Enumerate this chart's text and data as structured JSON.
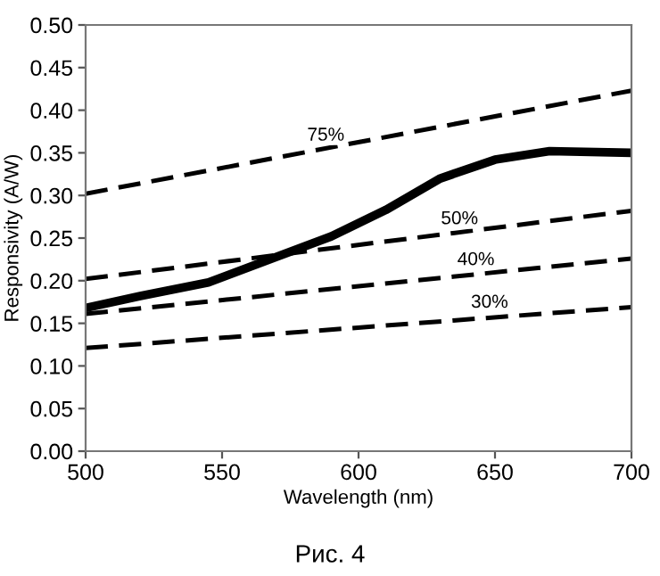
{
  "chart_data": {
    "type": "line",
    "xlabel": "Wavelength (nm)",
    "ylabel": "Responsivity (A/W)",
    "xlim": [
      500,
      700
    ],
    "xticks": [
      500,
      550,
      600,
      650,
      700
    ],
    "ylim": [
      0,
      0.5
    ],
    "yticks": [
      {
        "value": 0,
        "label": "0.00"
      },
      {
        "value": 0.05,
        "label": "0.05"
      },
      {
        "value": 0.1,
        "label": "0.10"
      },
      {
        "value": 0.15,
        "label": "0.15"
      },
      {
        "value": 0.2,
        "label": "0.20"
      },
      {
        "value": 0.25,
        "label": "0.25"
      },
      {
        "value": 0.3,
        "label": "0.30"
      },
      {
        "value": 0.35,
        "label": "0.35"
      },
      {
        "value": 0.4,
        "label": "0.40"
      },
      {
        "value": 0.45,
        "label": "0.45"
      },
      {
        "value": 0.5,
        "label": "0.50"
      }
    ],
    "grid": false,
    "legend": false,
    "marker": "none",
    "series": [
      {
        "color": "#000000",
        "line_style": "solid",
        "x": [
          500,
          520,
          545,
          570,
          590,
          610,
          630,
          650,
          670,
          700
        ],
        "values": [
          0.168,
          0.182,
          0.198,
          0.228,
          0.252,
          0.283,
          0.32,
          0.342,
          0.352,
          0.35
        ]
      },
      {
        "color": "#000000",
        "line_style": "dashed",
        "x": [
          500,
          700
        ],
        "values": [
          0.302,
          0.423
        ]
      },
      {
        "color": "#000000",
        "line_style": "dashed",
        "x": [
          500,
          700
        ],
        "values": [
          0.202,
          0.282
        ]
      },
      {
        "color": "#000000",
        "line_style": "dashed",
        "x": [
          500,
          700
        ],
        "values": [
          0.161,
          0.226
        ]
      },
      {
        "color": "#000000",
        "line_style": "dashed",
        "x": [
          500,
          700
        ],
        "values": [
          0.121,
          0.169
        ]
      }
    ],
    "annotations": [
      {
        "text": "75%",
        "x": 588,
        "y": 0.37
      },
      {
        "text": "50%",
        "x": 637,
        "y": 0.272
      },
      {
        "text": "40%",
        "x": 643,
        "y": 0.224
      },
      {
        "text": "30%",
        "x": 648,
        "y": 0.174
      },
      "Рис. 4"
    ]
  }
}
